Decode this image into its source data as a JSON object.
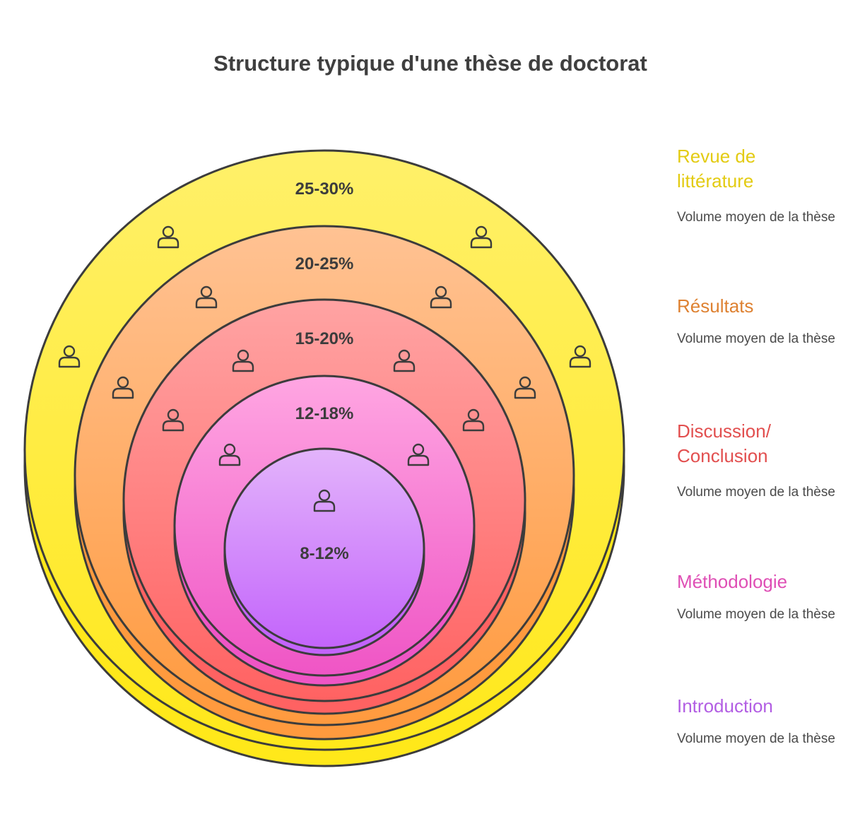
{
  "title": "Structure typique d'une thèse de doctorat",
  "rings": [
    {
      "key": "revue",
      "percent": "25-30%",
      "color_top": "#fff06a",
      "color_bottom": "#ffe81a"
    },
    {
      "key": "resultats",
      "percent": "20-25%",
      "color_top": "#ffc293",
      "color_bottom": "#ff9a3e"
    },
    {
      "key": "discussion",
      "percent": "15-20%",
      "color_top": "#ffa3a3",
      "color_bottom": "#ff6262"
    },
    {
      "key": "methodologie",
      "percent": "12-18%",
      "color_top": "#ffa6e2",
      "color_bottom": "#ef55c5"
    },
    {
      "key": "introduction",
      "percent": "8-12%",
      "color_top": "#e3b4fb",
      "color_bottom": "#c364fb"
    }
  ],
  "icon": "person-icon",
  "legend": [
    {
      "title": "Revue de littérature",
      "desc": "Volume moyen de la thèse",
      "color": "#e3cb12"
    },
    {
      "title": "Résultats",
      "desc": "Volume moyen de la thèse",
      "color": "#de8131"
    },
    {
      "title": "Discussion/ Conclusion",
      "desc": "Volume moyen de la thèse",
      "color": "#e24f4f"
    },
    {
      "title": "Méthodologie",
      "desc": "Volume moyen de la thèse",
      "color": "#df4fb5"
    },
    {
      "title": "Introduction",
      "desc": "Volume moyen de la thèse",
      "color": "#b25ee3"
    }
  ]
}
